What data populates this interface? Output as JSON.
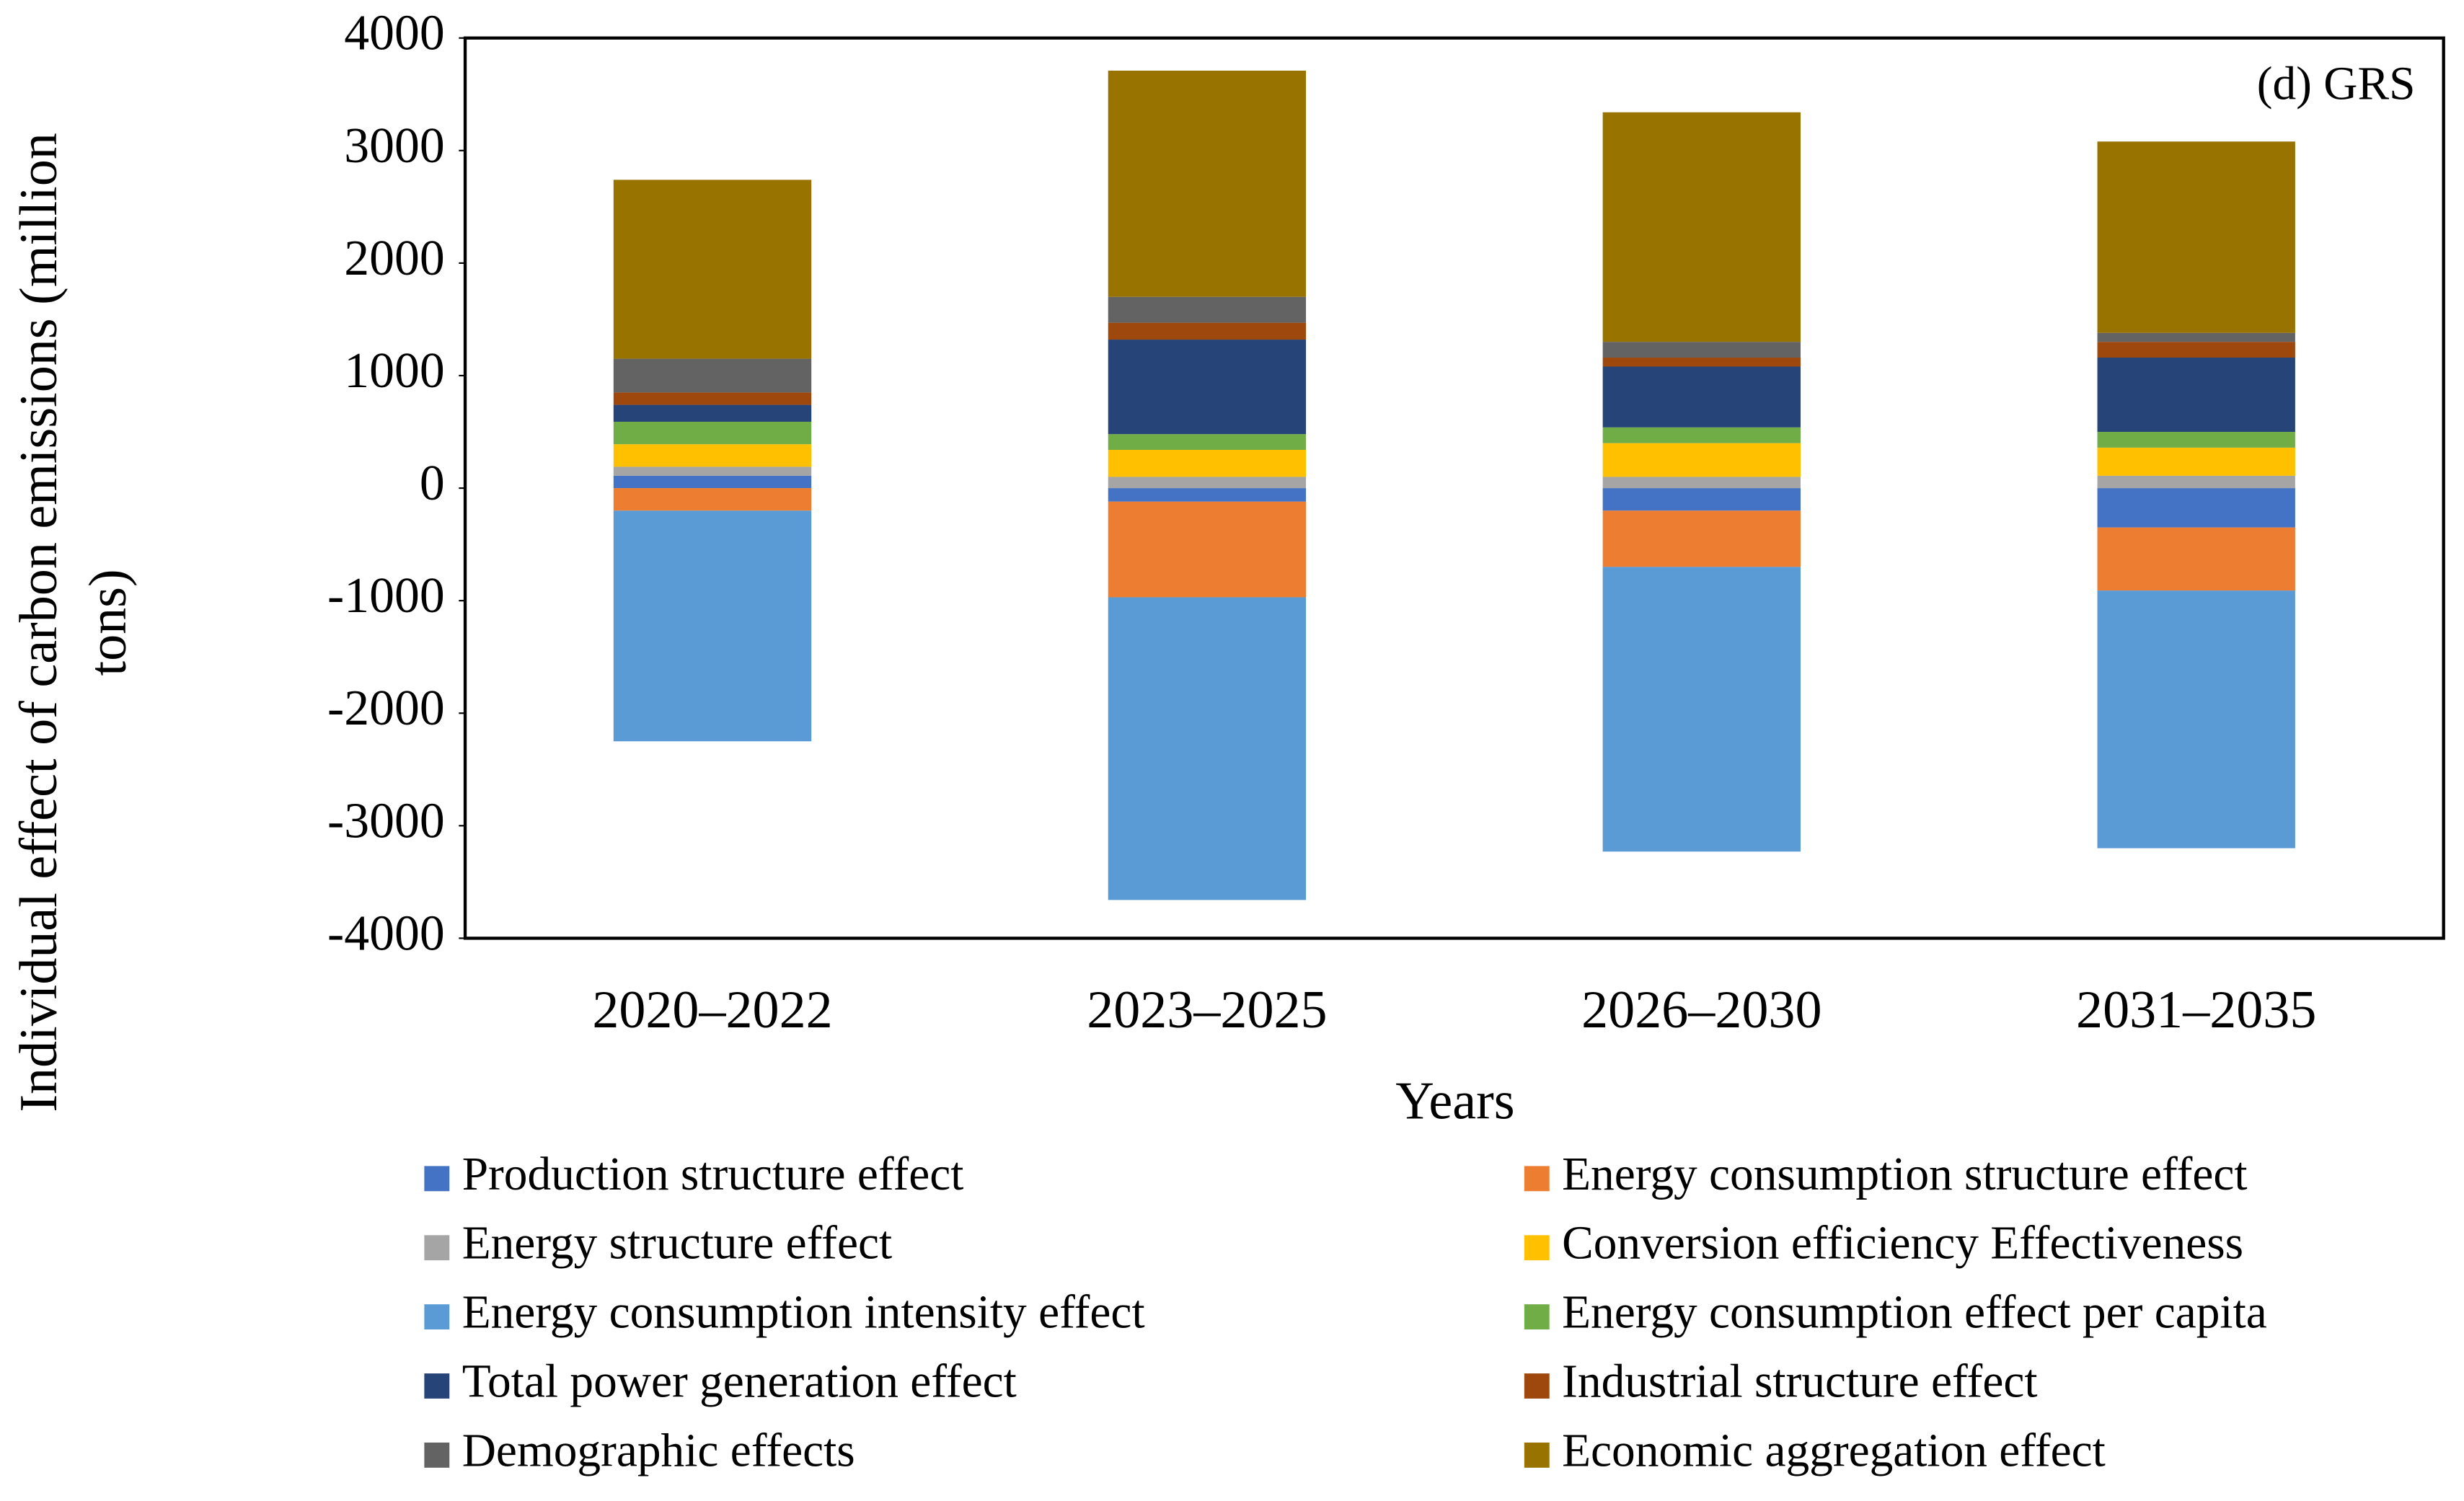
{
  "chart_data": {
    "type": "stacked-bar",
    "annotation": "(d) GRS",
    "x_label": "Years",
    "y_label": "Individual effect of carbon emissions (million tons)",
    "categories": [
      "2020–2022",
      "2023–2025",
      "2026–2030",
      "2031–2035"
    ],
    "ylim": [
      -4000,
      4000
    ],
    "yticks": [
      -4000,
      -3000,
      -2000,
      -1000,
      0,
      1000,
      2000,
      3000,
      4000
    ],
    "legend": "bottom",
    "series": [
      {
        "name": "Production structure effect",
        "color": "#4472c4",
        "values": [
          110,
          -120,
          -200,
          -350
        ]
      },
      {
        "name": "Energy consumption structure effect",
        "color": "#ed7d31",
        "values": [
          -200,
          -850,
          -500,
          -560
        ]
      },
      {
        "name": "Energy structure effect",
        "color": "#a5a5a5",
        "values": [
          80,
          100,
          100,
          110
        ]
      },
      {
        "name": "Conversion efficiency Effectiveness",
        "color": "#ffc000",
        "values": [
          200,
          240,
          300,
          250
        ]
      },
      {
        "name": "Energy consumption intensity effect",
        "color": "#5b9bd5",
        "values": [
          -2050,
          -2690,
          -2530,
          -2290
        ]
      },
      {
        "name": "Energy consumption effect per capita",
        "color": "#70ad47",
        "values": [
          200,
          140,
          140,
          140
        ]
      },
      {
        "name": "Total power generation effect",
        "color": "#264478",
        "values": [
          150,
          840,
          540,
          660
        ]
      },
      {
        "name": "Industrial structure effect",
        "color": "#9e480e",
        "values": [
          110,
          150,
          80,
          140
        ]
      },
      {
        "name": "Demographic effects",
        "color": "#636363",
        "values": [
          300,
          230,
          140,
          80
        ]
      },
      {
        "name": "Economic aggregation effect",
        "color": "#997300",
        "values": [
          1590,
          2010,
          2040,
          1700
        ]
      }
    ]
  }
}
